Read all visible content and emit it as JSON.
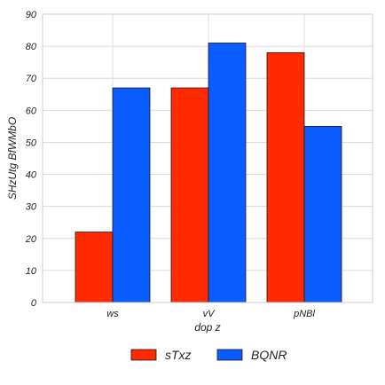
{
  "chart_data": {
    "type": "bar",
    "categories": [
      "ws",
      "vV",
      "pNBl"
    ],
    "series": [
      {
        "name": "sTxz",
        "values": [
          22,
          67,
          78
        ],
        "color": "#ff2a00"
      },
      {
        "name": "BQNR",
        "values": [
          67,
          81,
          55
        ],
        "color": "#0b5cff"
      }
    ],
    "xlabel": "dop z",
    "ylabel": "SHzUtg BfWMbO",
    "ylim": [
      0,
      90
    ],
    "yticks": [
      0,
      10,
      20,
      30,
      40,
      50,
      60,
      70,
      80,
      90
    ],
    "grid": true,
    "legend_position": "bottom-center"
  }
}
